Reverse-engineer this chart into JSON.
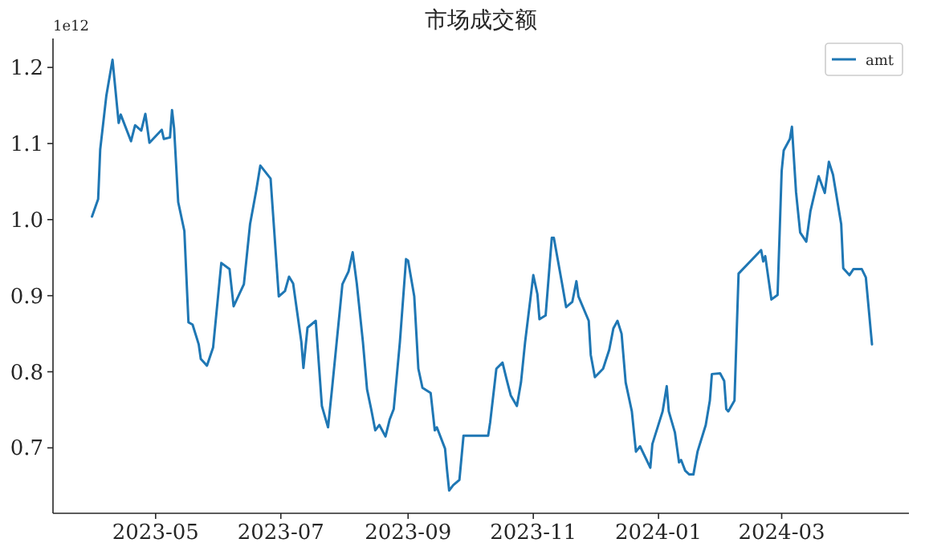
{
  "chart_data": {
    "type": "line",
    "title": "市场成交额",
    "annotations": [
      "1e12"
    ],
    "x": [
      "2023-03-31",
      "2023-04-03",
      "2023-04-04",
      "2023-04-07",
      "2023-04-10",
      "2023-04-13",
      "2023-04-14",
      "2023-04-19",
      "2023-04-21",
      "2023-04-24",
      "2023-04-26",
      "2023-04-28",
      "2023-05-04",
      "2023-05-05",
      "2023-05-08",
      "2023-05-09",
      "2023-05-10",
      "2023-05-12",
      "2023-05-15",
      "2023-05-17",
      "2023-05-19",
      "2023-05-22",
      "2023-05-23",
      "2023-05-26",
      "2023-05-29",
      "2023-06-02",
      "2023-06-06",
      "2023-06-08",
      "2023-06-13",
      "2023-06-16",
      "2023-06-19",
      "2023-06-21",
      "2023-06-26",
      "2023-06-30",
      "2023-07-03",
      "2023-07-05",
      "2023-07-07",
      "2023-07-11",
      "2023-07-12",
      "2023-07-14",
      "2023-07-18",
      "2023-07-21",
      "2023-07-24",
      "2023-07-26",
      "2023-07-31",
      "2023-08-03",
      "2023-08-05",
      "2023-08-07",
      "2023-08-10",
      "2023-08-12",
      "2023-08-14",
      "2023-08-16",
      "2023-08-18",
      "2023-08-21",
      "2023-08-23",
      "2023-08-25",
      "2023-08-28",
      "2023-08-31",
      "2023-09-01",
      "2023-09-04",
      "2023-09-06",
      "2023-09-08",
      "2023-09-12",
      "2023-09-14",
      "2023-09-15",
      "2023-09-19",
      "2023-09-20",
      "2023-09-21",
      "2023-09-23",
      "2023-09-26",
      "2023-09-28",
      "2023-10-10",
      "2023-10-11",
      "2023-10-14",
      "2023-10-17",
      "2023-10-19",
      "2023-10-21",
      "2023-10-24",
      "2023-10-26",
      "2023-10-28",
      "2023-11-01",
      "2023-11-03",
      "2023-11-04",
      "2023-11-07",
      "2023-11-10",
      "2023-11-11",
      "2023-11-15",
      "2023-11-17",
      "2023-11-20",
      "2023-11-22",
      "2023-11-23",
      "2023-11-28",
      "2023-11-29",
      "2023-12-01",
      "2023-12-05",
      "2023-12-08",
      "2023-12-10",
      "2023-12-12",
      "2023-12-14",
      "2023-12-16",
      "2023-12-19",
      "2023-12-21",
      "2023-12-23",
      "2023-12-28",
      "2023-12-29",
      "2024-01-03",
      "2024-01-05",
      "2024-01-06",
      "2024-01-09",
      "2024-01-11",
      "2024-01-12",
      "2024-01-14",
      "2024-01-16",
      "2024-01-18",
      "2024-01-20",
      "2024-01-24",
      "2024-01-26",
      "2024-01-27",
      "2024-01-31",
      "2024-02-02",
      "2024-02-03",
      "2024-02-04",
      "2024-02-07",
      "2024-02-09",
      "2024-02-20",
      "2024-02-21",
      "2024-02-22",
      "2024-02-25",
      "2024-02-28",
      "2024-03-01",
      "2024-03-02",
      "2024-03-05",
      "2024-03-06",
      "2024-03-08",
      "2024-03-10",
      "2024-03-13",
      "2024-03-15",
      "2024-03-19",
      "2024-03-22",
      "2024-03-24",
      "2024-03-26",
      "2024-03-30",
      "2024-03-31",
      "2024-04-03",
      "2024-04-05",
      "2024-04-09",
      "2024-04-11",
      "2024-04-14"
    ],
    "series": [
      {
        "name": "amt",
        "color": "#1f77b4",
        "values": [
          1.004,
          1.027,
          1.092,
          1.163,
          1.21,
          1.127,
          1.138,
          1.103,
          1.124,
          1.117,
          1.139,
          1.101,
          1.118,
          1.106,
          1.108,
          1.144,
          1.12,
          1.023,
          0.985,
          0.865,
          0.862,
          0.836,
          0.817,
          0.808,
          0.832,
          0.943,
          0.935,
          0.886,
          0.915,
          0.994,
          1.038,
          1.071,
          1.054,
          0.899,
          0.906,
          0.925,
          0.916,
          0.839,
          0.805,
          0.858,
          0.867,
          0.755,
          0.727,
          0.779,
          0.915,
          0.932,
          0.957,
          0.916,
          0.839,
          0.777,
          0.751,
          0.723,
          0.73,
          0.715,
          0.737,
          0.751,
          0.839,
          0.948,
          0.946,
          0.899,
          0.804,
          0.779,
          0.772,
          0.723,
          0.727,
          0.699,
          0.67,
          0.644,
          0.651,
          0.658,
          0.716,
          0.716,
          0.734,
          0.804,
          0.812,
          0.79,
          0.769,
          0.755,
          0.786,
          0.839,
          0.927,
          0.902,
          0.869,
          0.874,
          0.976,
          0.976,
          0.916,
          0.885,
          0.892,
          0.919,
          0.899,
          0.867,
          0.822,
          0.793,
          0.804,
          0.829,
          0.857,
          0.867,
          0.85,
          0.786,
          0.748,
          0.695,
          0.702,
          0.674,
          0.705,
          0.748,
          0.781,
          0.748,
          0.72,
          0.681,
          0.684,
          0.67,
          0.665,
          0.665,
          0.695,
          0.73,
          0.762,
          0.797,
          0.798,
          0.788,
          0.751,
          0.748,
          0.762,
          0.929,
          0.96,
          0.945,
          0.952,
          0.895,
          0.901,
          1.064,
          1.091,
          1.106,
          1.122,
          1.036,
          0.983,
          0.971,
          1.011,
          1.057,
          1.035,
          1.076,
          1.059,
          0.994,
          0.936,
          0.927,
          0.935,
          0.935,
          0.924,
          0.836
        ]
      }
    ],
    "xlim": [
      "2023-03-12",
      "2024-05-02"
    ],
    "ylim": [
      0.614,
      1.238
    ],
    "xticks": [
      "2023-05",
      "2023-07",
      "2023-09",
      "2023-11",
      "2024-01",
      "2024-03"
    ],
    "yticks": [
      {
        "value": 0.7,
        "label": "0.7"
      },
      {
        "value": 0.8,
        "label": "0.8"
      },
      {
        "value": 0.9,
        "label": "0.9"
      },
      {
        "value": 1.0,
        "label": "1.0"
      },
      {
        "value": 1.1,
        "label": "1.1"
      },
      {
        "value": 1.2,
        "label": "1.2"
      }
    ],
    "legend": "top right",
    "grid": false,
    "line_style": "solid"
  }
}
